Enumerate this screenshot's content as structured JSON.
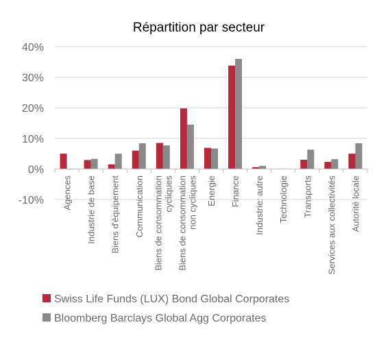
{
  "chart_data": {
    "type": "bar",
    "title": "Répartition par secteur",
    "categories": [
      [
        "Agences"
      ],
      [
        "Industrie de base"
      ],
      [
        "Biens d'équipement"
      ],
      [
        "Communication"
      ],
      [
        "Biens de consommation",
        "cycliques"
      ],
      [
        "Biens de consommation",
        "non cycliques"
      ],
      [
        "Energie"
      ],
      [
        "Finance"
      ],
      [
        "Industrie: autre"
      ],
      [
        "Technologie"
      ],
      [
        "Transports"
      ],
      [
        "Services aux collectivités"
      ],
      [
        "Autorité locale"
      ]
    ],
    "series": [
      {
        "name": "Swiss Life Funds (LUX) Bond Global Corporates",
        "color": "#b5293a",
        "values": [
          5.0,
          2.9,
          1.5,
          6.0,
          8.5,
          19.8,
          6.9,
          33.8,
          0.6,
          0.1,
          3.0,
          2.3,
          5.0
        ]
      },
      {
        "name": "Bloomberg Barclays Global Agg Corporates",
        "color": "#8a8a8a",
        "values": [
          0.0,
          3.3,
          5.0,
          8.4,
          7.7,
          14.5,
          6.7,
          36.0,
          1.0,
          0.1,
          6.3,
          3.2,
          8.4
        ]
      }
    ],
    "yticks": [
      "40%",
      "30%",
      "20%",
      "10%",
      "0%",
      "-10%"
    ],
    "ytick_values": [
      40,
      30,
      20,
      10,
      0,
      -10
    ],
    "ylim": [
      -10,
      40
    ],
    "grid": true,
    "legend_position": "bottom-left"
  }
}
